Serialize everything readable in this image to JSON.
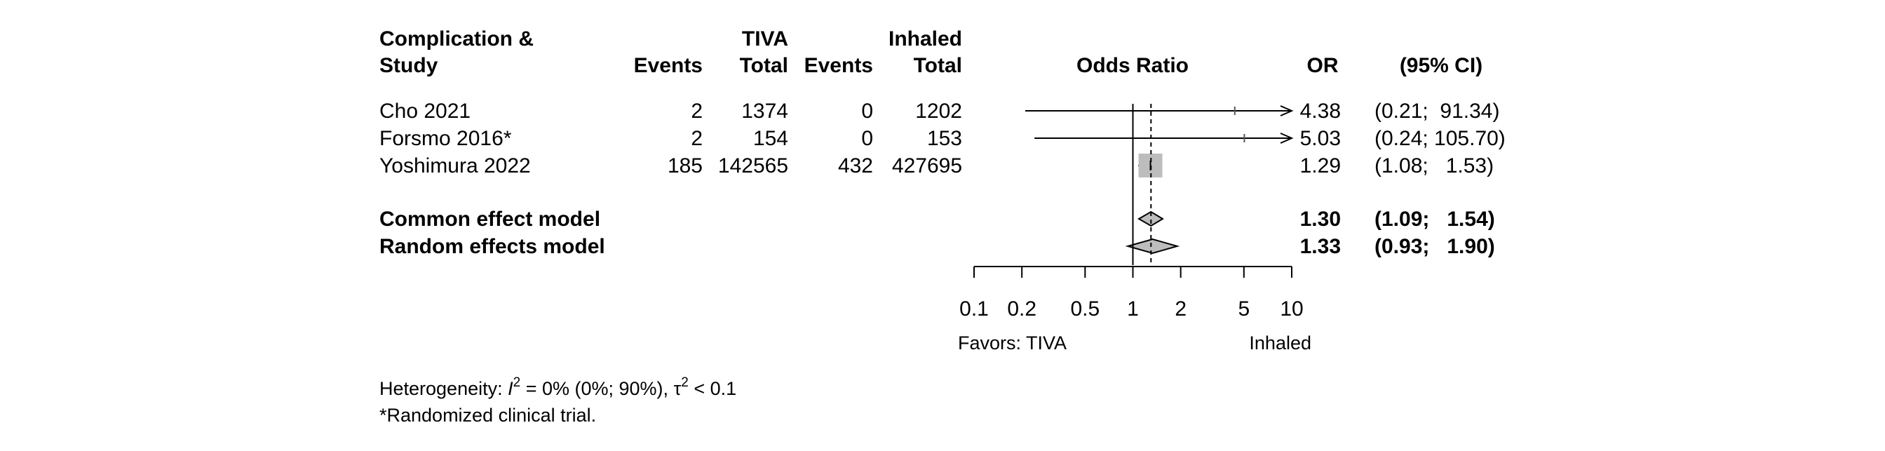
{
  "chart_data": {
    "type": "forest",
    "columns": {
      "group_tiva": "TIVA",
      "group_inhaled": "Inhaled",
      "study_header_line1": "Complication &",
      "study_header_line2": "Study",
      "events": "Events",
      "total": "Total",
      "plot_header": "Odds Ratio",
      "or_header": "OR",
      "ci_header": "(95% CI)"
    },
    "studies": [
      {
        "name": "Cho 2021",
        "tiva_events": "2",
        "tiva_total": "1374",
        "inh_events": "0",
        "inh_total": "1202",
        "or": 4.38,
        "lower": 0.21,
        "upper": 91.34,
        "or_text": "4.38",
        "ci_text": "(0.21;  91.34)",
        "arrow_right": true
      },
      {
        "name": "Forsmo 2016*",
        "tiva_events": "2",
        "tiva_total": "154",
        "inh_events": "0",
        "inh_total": "153",
        "or": 5.03,
        "lower": 0.24,
        "upper": 105.7,
        "or_text": "5.03",
        "ci_text": "(0.24; 105.70)",
        "arrow_right": true
      },
      {
        "name": "Yoshimura 2022",
        "tiva_events": "185",
        "tiva_total": "142565",
        "inh_events": "432",
        "inh_total": "427695",
        "or": 1.29,
        "lower": 1.08,
        "upper": 1.53,
        "or_text": "1.29",
        "ci_text": "(1.08;   1.53)",
        "arrow_right": false
      }
    ],
    "models": [
      {
        "name": "Common effect model",
        "or": 1.3,
        "lower": 1.09,
        "upper": 1.54,
        "or_text": "1.30",
        "ci_text": "(1.09;   1.54)"
      },
      {
        "name": "Random effects model",
        "or": 1.33,
        "lower": 0.93,
        "upper": 1.9,
        "or_text": "1.33",
        "ci_text": "(0.93;   1.90)"
      }
    ],
    "x_axis": {
      "scale": "log",
      "xlim": [
        0.1,
        10
      ],
      "ticks": [
        0.1,
        0.2,
        0.5,
        1,
        2,
        5,
        10
      ],
      "tick_labels": [
        "0.1",
        "0.2",
        "0.5",
        "1",
        "2",
        "5",
        "10"
      ],
      "null_value": 1,
      "label_left": "Favors: TIVA",
      "label_right": "Inhaled"
    },
    "footnotes": {
      "heterogeneity_prefix": "Heterogeneity: ",
      "i2_symbol": "I",
      "sup_2": "2",
      "i2_value": " = 0% (0%; 90%), ",
      "tau_symbol": "τ",
      "tau_value": " < 0.1",
      "rct_note": "*Randomized clinical trial."
    },
    "colors": {
      "square": "#bdbdbd",
      "diamond": "#bdbdbd",
      "line": "#000000"
    }
  }
}
